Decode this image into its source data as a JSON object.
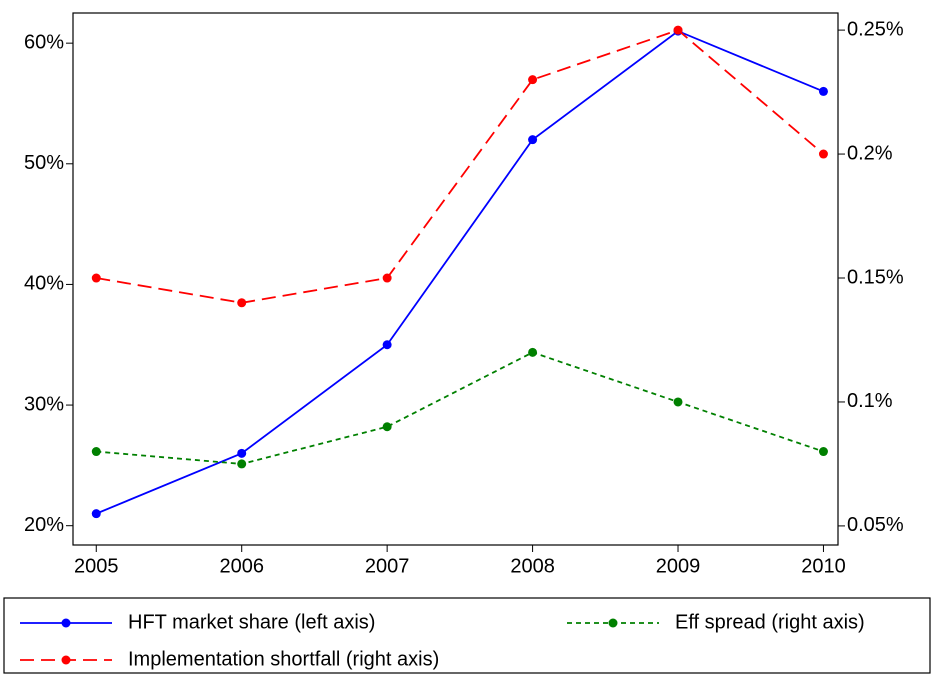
{
  "chart_data": {
    "type": "line",
    "x": [
      2005,
      2006,
      2007,
      2008,
      2009,
      2010
    ],
    "xlim": [
      2004.84,
      2010.1
    ],
    "xticks": [
      2005,
      2006,
      2007,
      2008,
      2009,
      2010
    ],
    "ylim": [
      18.4,
      62.5
    ],
    "yticks": [
      {
        "value": 20,
        "label": "20%"
      },
      {
        "value": 30,
        "label": "30%"
      },
      {
        "value": 40,
        "label": "40%"
      },
      {
        "value": 50,
        "label": "50%"
      },
      {
        "value": 60,
        "label": "60%"
      }
    ],
    "y2lim": [
      0.0423,
      0.2569
    ],
    "y2ticks": [
      {
        "value": 0.05,
        "label": "0.05%"
      },
      {
        "value": 0.1,
        "label": "0.1%"
      },
      {
        "value": 0.15,
        "label": "0.15%"
      },
      {
        "value": 0.2,
        "label": "0.2%"
      },
      {
        "value": 0.25,
        "label": "0.25%"
      }
    ],
    "series": [
      {
        "name": "HFT market share (left axis)",
        "color": "#0000ff",
        "line_style": "solid",
        "values": [
          21,
          26,
          35,
          52,
          61,
          56
        ]
      },
      {
        "name": "Eff spread (right axis)",
        "color": "#008000",
        "line_style": "dotted",
        "axis": "y2",
        "values": [
          0.08,
          0.075,
          0.09,
          0.12,
          0.1,
          0.08
        ]
      },
      {
        "name": "Implementation shortfall (right axis)",
        "color": "#ff0000",
        "line_style": "dashed",
        "axis": "y2",
        "values": [
          0.15,
          0.14,
          0.15,
          0.23,
          0.25,
          0.2
        ]
      }
    ]
  }
}
